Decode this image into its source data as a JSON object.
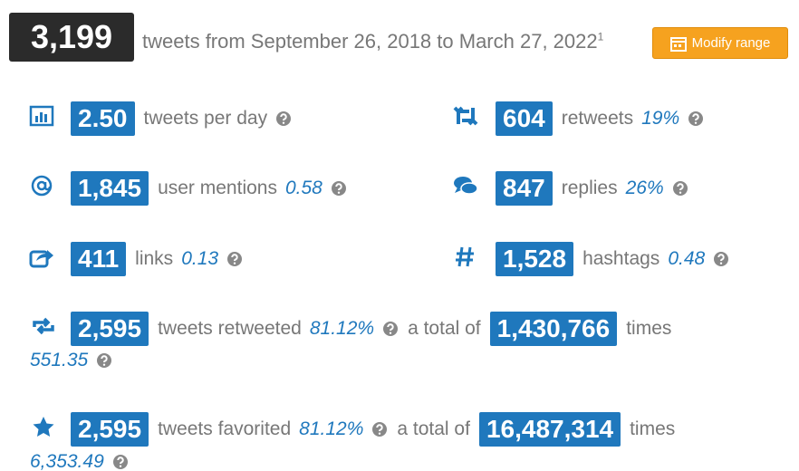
{
  "header": {
    "count": "3,199",
    "text": "tweets from September 26, 2018 to March 27, 2022",
    "footnote": "1",
    "button": "Modify range"
  },
  "stats": [
    {
      "value": "2.50",
      "label": "tweets per day"
    },
    {
      "value": "604",
      "label": "retweets",
      "ratio": "19%"
    },
    {
      "value": "1,845",
      "label": "user mentions",
      "ratio": "0.58"
    },
    {
      "value": "847",
      "label": "replies",
      "ratio": "26%"
    },
    {
      "value": "411",
      "label": "links",
      "ratio": "0.13"
    },
    {
      "value": "1,528",
      "label": "hashtags",
      "ratio": "0.48"
    }
  ],
  "wide": [
    {
      "value": "2,595",
      "label": "tweets retweeted",
      "ratio": "81.12%",
      "total_text": "a total of",
      "total": "1,430,766",
      "times": "times",
      "average": "551.35"
    },
    {
      "value": "2,595",
      "label": "tweets favorited",
      "ratio": "81.12%",
      "total_text": "a total of",
      "total": "16,487,314",
      "times": "times",
      "average": "6,353.49"
    }
  ]
}
